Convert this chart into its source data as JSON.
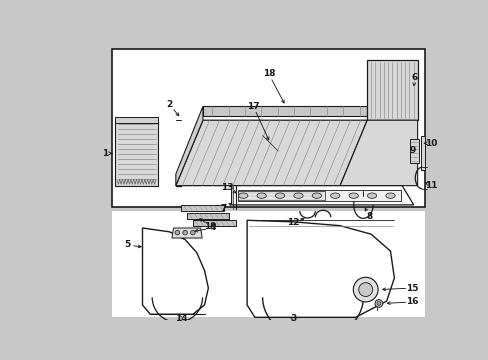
{
  "bg_color": "#c8c8c8",
  "upper_box_bg": "#e8e8e8",
  "lower_bg": "#c8c8c8",
  "line_color": "#1a1a1a",
  "white": "#ffffff",
  "light_gray": "#d8d8d8",
  "mid_gray": "#b0b0b0",
  "fig_width": 4.89,
  "fig_height": 3.6,
  "dpi": 100
}
